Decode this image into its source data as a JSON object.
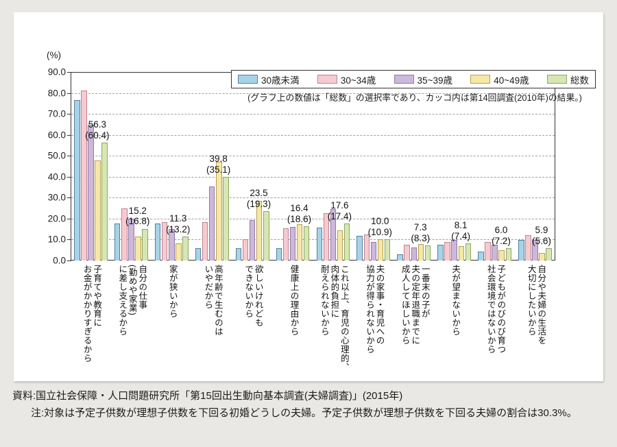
{
  "page_background": "#eae8e4",
  "y_axis": {
    "unit": "(%)",
    "ticks": [
      "90.0",
      "80.0",
      "70.0",
      "60.0",
      "50.0",
      "40.0",
      "30.0",
      "20.0",
      "10.0",
      "0.0"
    ]
  },
  "legend_note": "(グラフ上の数値は「総数」の選択率であり、カッコ内は第14回調査(2010年)の結果。)",
  "footer": {
    "source": "資料:国立社会保障・人口問題研究所「第15回出生動向基本調査(夫婦調査)」(2015年)",
    "note_label": "注:",
    "note_text": "対象は予定子供数が理想子供数を下回る初婚どうしの夫婦。予定子供数が理想子供数を下回る夫婦の割合は30.3%。"
  },
  "chart_data": {
    "type": "bar",
    "title": "",
    "ylabel": "(%)",
    "ylim": [
      0,
      90
    ],
    "ytick_step": 10,
    "grid": true,
    "legend_position": "top-right",
    "series": [
      {
        "name": "30歳未満",
        "fill": "#a7d3e8",
        "stroke": "#54809b"
      },
      {
        "name": "30~34歳",
        "fill": "#f7c9d1",
        "stroke": "#bd8490"
      },
      {
        "name": "35~39歳",
        "fill": "#cdb7da",
        "stroke": "#8e7ba0"
      },
      {
        "name": "40~49歳",
        "fill": "#f6e7a5",
        "stroke": "#b3a055"
      },
      {
        "name": "総数",
        "fill": "#d6e7b3",
        "stroke": "#8ca465"
      }
    ],
    "value_note": "グラフ上の数値は「総数」の選択率、カッコ内は第14回調査(2010年)の結果",
    "categories": [
      {
        "label": "子育てや教育に\nお金がかかりすぎるから",
        "values": [
          76.5,
          81.1,
          64.9,
          47.7,
          56.3
        ],
        "total_label": "56.3",
        "prev_label": "(60.4)"
      },
      {
        "label": "自分の仕事\n(勤めや家業)\nに差し支えるから",
        "values": [
          17.6,
          24.8,
          20.1,
          11.6,
          15.2
        ],
        "total_label": "15.2",
        "prev_label": "(16.8)"
      },
      {
        "label": "家が狭いから",
        "values": [
          17.6,
          18.2,
          15.2,
          8.2,
          11.3
        ],
        "total_label": "11.3",
        "prev_label": "(13.2)"
      },
      {
        "label": "高年齢で生むのは\nいやだから",
        "values": [
          5.9,
          18.4,
          35.5,
          47.2,
          39.8
        ],
        "total_label": "39.8",
        "prev_label": "(35.1)"
      },
      {
        "label": "欲しいけれども\nできないから",
        "values": [
          5.9,
          10.3,
          19.3,
          28.4,
          23.5
        ],
        "total_label": "23.5",
        "prev_label": "(19.3)"
      },
      {
        "label": "健康上の理由から",
        "values": [
          5.9,
          15.4,
          16.0,
          17.4,
          16.4
        ],
        "total_label": "16.4",
        "prev_label": "(18.6)"
      },
      {
        "label": "これ以上、育児の心理的、\n肉体的負担に\n耐えられないから",
        "values": [
          15.8,
          22.6,
          24.5,
          14.3,
          17.6
        ],
        "total_label": "17.6",
        "prev_label": "(17.4)"
      },
      {
        "label": "夫の家事・育児への\n協力が得られないから",
        "values": [
          11.8,
          12.3,
          8.9,
          10.0,
          10.0
        ],
        "total_label": "10.0",
        "prev_label": "(10.9)"
      },
      {
        "label": "一番末の子が\n夫の定年退職までに\n成人してほしいから",
        "values": [
          2.9,
          7.4,
          6.1,
          8.0,
          7.3
        ],
        "total_label": "7.3",
        "prev_label": "(8.3)"
      },
      {
        "label": "夫が望まないから",
        "values": [
          7.4,
          8.9,
          9.9,
          7.0,
          8.1
        ],
        "total_label": "8.1",
        "prev_label": "(7.4)"
      },
      {
        "label": "子どもがのびのび育つ\n社会環境ではないから",
        "values": [
          4.4,
          9.0,
          7.6,
          5.0,
          6.0
        ],
        "total_label": "6.0",
        "prev_label": "(7.2)"
      },
      {
        "label": "自分や夫婦の生活を\n大切にしたいから",
        "values": [
          9.8,
          12.0,
          9.9,
          3.7,
          5.9
        ],
        "total_label": "5.9",
        "prev_label": "(5.6)"
      }
    ]
  }
}
